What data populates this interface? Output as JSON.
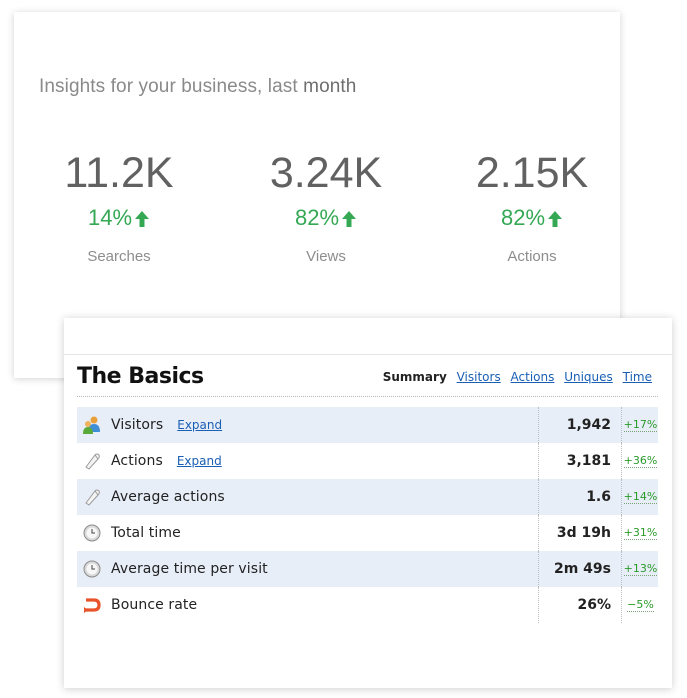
{
  "insights": {
    "title_prefix": "Insights for your business, last ",
    "title_emphasis": "month",
    "metrics": [
      {
        "value": "11.2K",
        "change": "14%",
        "label": "Searches"
      },
      {
        "value": "3.24K",
        "change": "82%",
        "label": "Views"
      },
      {
        "value": "2.15K",
        "change": "82%",
        "label": "Actions"
      }
    ],
    "accent_color": "#35a854"
  },
  "basics": {
    "heading": "The Basics",
    "tabs": {
      "summary": "Summary",
      "visitors": "Visitors",
      "actions": "Actions",
      "uniques": "Uniques",
      "time": "Time"
    },
    "rows": [
      {
        "label": "Visitors",
        "expand": "Expand",
        "value": "1,942",
        "change": "+17%",
        "icon": "visitors-icon"
      },
      {
        "label": "Actions",
        "expand": "Expand",
        "value": "3,181",
        "change": "+36%",
        "icon": "cursor-icon"
      },
      {
        "label": "Average actions",
        "value": "1.6",
        "change": "+14%",
        "icon": "cursor-icon"
      },
      {
        "label": "Total time",
        "value": "3d 19h",
        "change": "+31%",
        "icon": "clock-icon"
      },
      {
        "label": "Average time per visit",
        "value": "2m 49s",
        "change": "+13%",
        "icon": "clock-icon"
      },
      {
        "label": "Bounce rate",
        "value": "26%",
        "change": "−5%",
        "icon": "bounce-icon"
      }
    ]
  }
}
